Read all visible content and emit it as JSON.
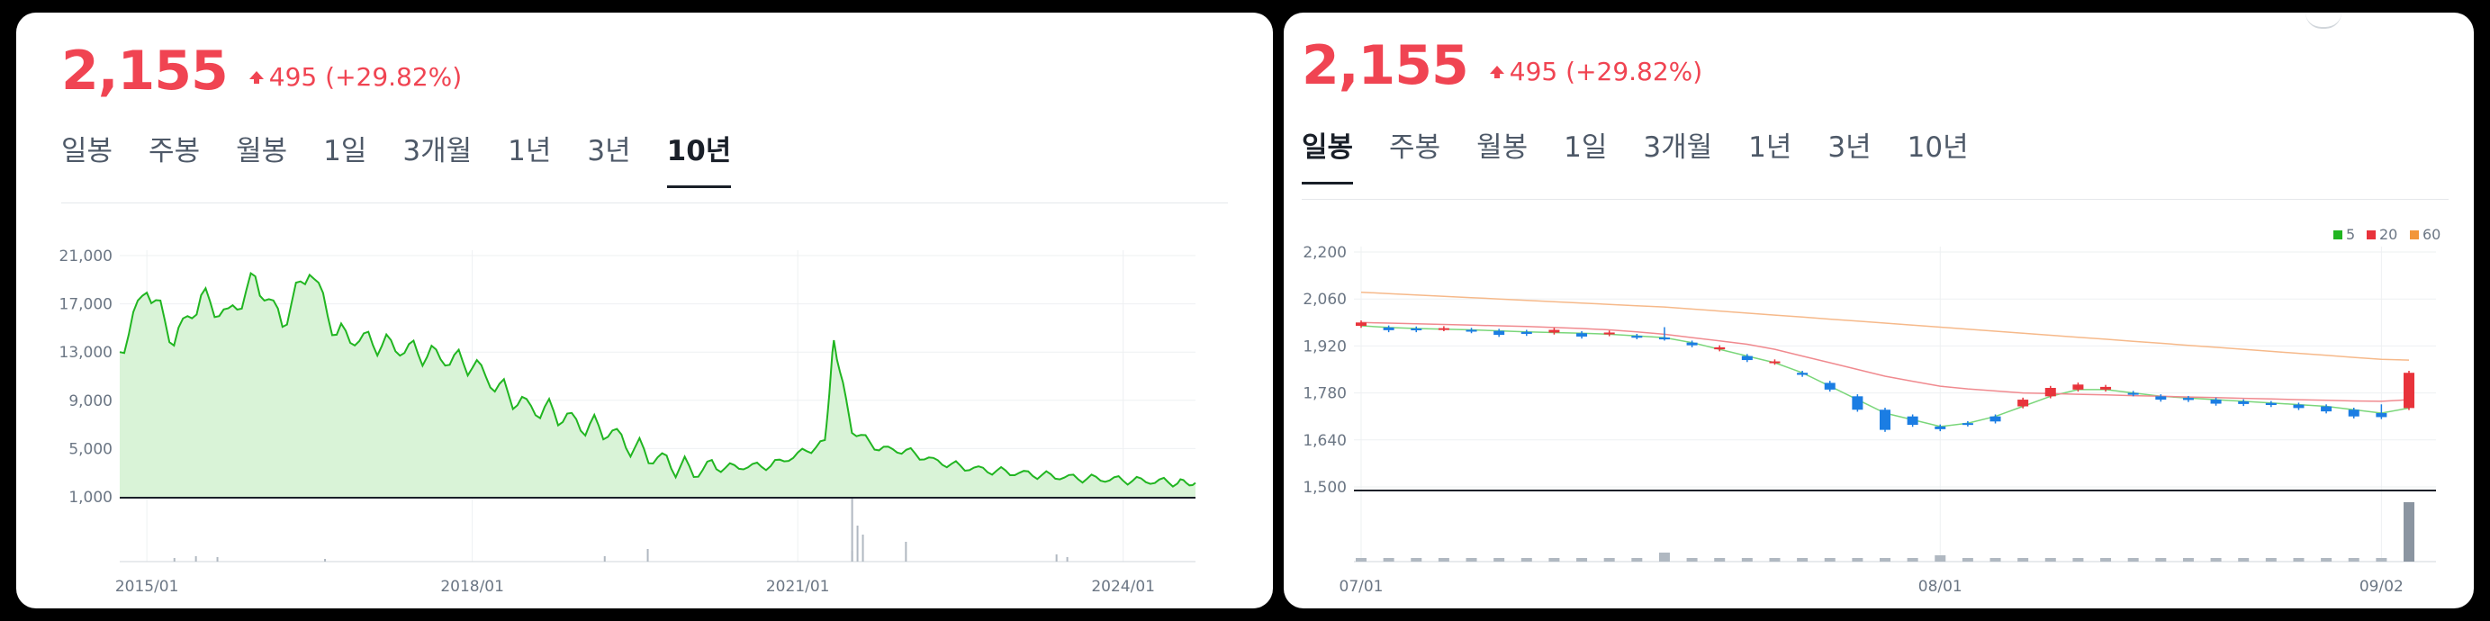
{
  "left": {
    "price": "2,155",
    "change": "495 (+29.82%)",
    "tabs": [
      "일봉",
      "주봉",
      "월봉",
      "1일",
      "3개월",
      "1년",
      "3년",
      "10년"
    ],
    "active_tab": "10년"
  },
  "right": {
    "price": "2,155",
    "change": "495 (+29.82%)",
    "tabs": [
      "일봉",
      "주봉",
      "월봉",
      "1일",
      "3개월",
      "1년",
      "3년",
      "10년"
    ],
    "active_tab": "일봉",
    "legend": [
      {
        "label": "5",
        "color": "#21b521"
      },
      {
        "label": "20",
        "color": "#e8333b"
      },
      {
        "label": "60",
        "color": "#f2963a"
      }
    ]
  },
  "colors": {
    "up": "#f04452",
    "green_line": "#21b521",
    "blue_candle": "#1b7de3",
    "red_candle": "#e8333b"
  },
  "chart_data": [
    {
      "type": "area",
      "ylim": [
        1000,
        21000
      ],
      "y_ticks": [
        "21,000",
        "17,000",
        "13,000",
        "9,000",
        "5,000",
        "1,000"
      ],
      "x_ticks": [
        "2015/01",
        "2018/01",
        "2021/01",
        "2024/01"
      ],
      "x": [
        "2014/10",
        "2015/01",
        "2015/04",
        "2015/07",
        "2015/10",
        "2016/01",
        "2016/04",
        "2016/07",
        "2016/10",
        "2017/01",
        "2017/04",
        "2017/07",
        "2017/10",
        "2018/01",
        "2018/04",
        "2018/07",
        "2018/10",
        "2019/01",
        "2019/04",
        "2019/07",
        "2019/10",
        "2020/01",
        "2020/04",
        "2020/07",
        "2020/10",
        "2021/01",
        "2021/04",
        "2021/05",
        "2021/07",
        "2021/10",
        "2022/01",
        "2022/04",
        "2022/07",
        "2022/10",
        "2023/01",
        "2023/04",
        "2023/07",
        "2023/10",
        "2024/01",
        "2024/04",
        "2024/07",
        "2024/09"
      ],
      "y": [
        13000,
        18500,
        14000,
        17500,
        16000,
        19000,
        15500,
        20000,
        14500,
        14000,
        13500,
        13000,
        12500,
        12000,
        10000,
        8500,
        8000,
        7000,
        6500,
        5000,
        4000,
        3200,
        3400,
        3500,
        3600,
        4500,
        5500,
        14000,
        6500,
        5000,
        4800,
        4000,
        3500,
        3200,
        3000,
        2800,
        2600,
        2500,
        2400,
        2300,
        2200,
        2155
      ]
    },
    {
      "type": "candlestick",
      "ylim": [
        1500,
        2200
      ],
      "y_ticks": [
        "2,200",
        "2,060",
        "1,920",
        "1,780",
        "1,640",
        "1,500"
      ],
      "x_ticks": [
        "07/01",
        "08/01",
        "09/02"
      ],
      "series": [
        {
          "name": "5",
          "values": [
            1980,
            1975,
            1972,
            1970,
            1968,
            1965,
            1962,
            1960,
            1958,
            1955,
            1950,
            1945,
            1930,
            1910,
            1890,
            1870,
            1840,
            1800,
            1760,
            1720,
            1700,
            1680,
            1690,
            1710,
            1740,
            1770,
            1790,
            1790,
            1780,
            1770,
            1765,
            1760,
            1755,
            1750,
            1745,
            1740,
            1730,
            1720,
            1735
          ]
        },
        {
          "name": "20",
          "values": [
            1990,
            1988,
            1986,
            1984,
            1982,
            1980,
            1978,
            1975,
            1972,
            1968,
            1962,
            1955,
            1945,
            1935,
            1925,
            1910,
            1890,
            1870,
            1850,
            1830,
            1815,
            1800,
            1792,
            1786,
            1780,
            1778,
            1776,
            1774,
            1772,
            1770,
            1768,
            1766,
            1764,
            1762,
            1760,
            1758,
            1756,
            1755,
            1760
          ]
        },
        {
          "name": "60",
          "values": [
            2080,
            2076,
            2072,
            2068,
            2064,
            2060,
            2056,
            2052,
            2048,
            2044,
            2040,
            2036,
            2030,
            2024,
            2018,
            2012,
            2006,
            2000,
            1994,
            1988,
            1982,
            1976,
            1970,
            1964,
            1958,
            1952,
            1946,
            1940,
            1934,
            1928,
            1922,
            1916,
            1910,
            1904,
            1898,
            1892,
            1886,
            1880,
            1878
          ]
        }
      ]
    }
  ]
}
